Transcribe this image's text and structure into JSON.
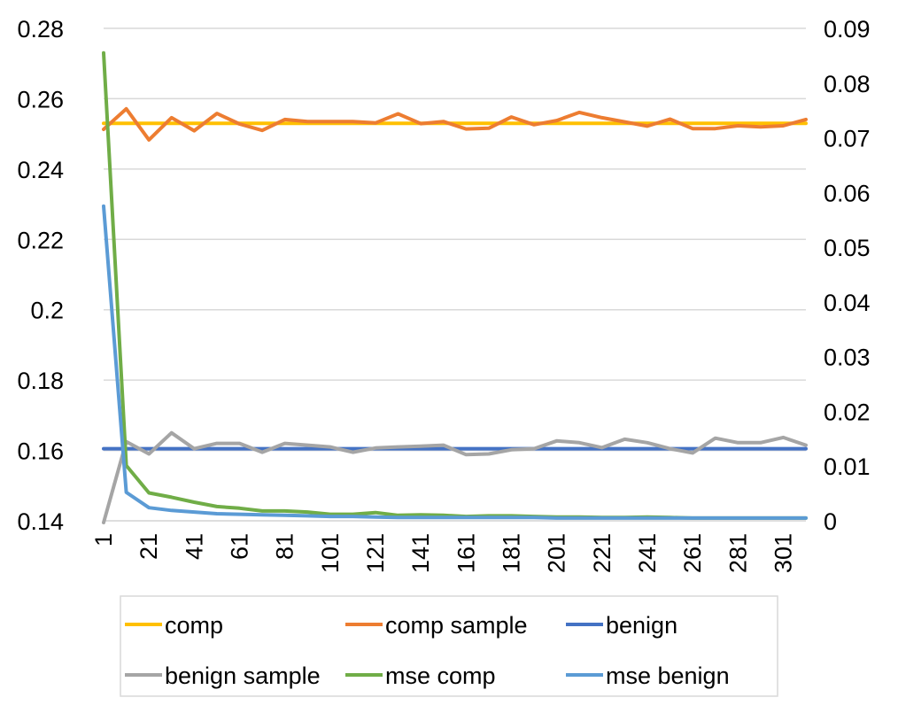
{
  "chart_data": {
    "type": "line",
    "title": "",
    "xlabel": "",
    "ylabel": "",
    "x_ticks": [
      "1",
      "21",
      "41",
      "61",
      "81",
      "101",
      "121",
      "141",
      "161",
      "181",
      "201",
      "221",
      "241",
      "261",
      "281",
      "301"
    ],
    "x_range": [
      1,
      311
    ],
    "y_left": {
      "range": [
        0.14,
        0.28
      ],
      "ticks": [
        "0.14",
        "0.16",
        "0.18",
        "0.2",
        "0.22",
        "0.24",
        "0.26",
        "0.28"
      ],
      "tick_values": [
        0.14,
        0.16,
        0.18,
        0.2,
        0.22,
        0.24,
        0.26,
        0.28
      ]
    },
    "y_right": {
      "range": [
        0,
        0.09
      ],
      "ticks": [
        "0",
        "0.01",
        "0.02",
        "0.03",
        "0.04",
        "0.05",
        "0.06",
        "0.07",
        "0.08",
        "0.09"
      ],
      "tick_values": [
        0,
        0.01,
        0.02,
        0.03,
        0.04,
        0.05,
        0.06,
        0.07,
        0.08,
        0.09
      ]
    },
    "grid": "horizontal",
    "legend_position": "bottom",
    "x": [
      1,
      11,
      21,
      31,
      41,
      51,
      61,
      71,
      81,
      91,
      101,
      111,
      121,
      131,
      141,
      151,
      161,
      171,
      181,
      191,
      201,
      211,
      221,
      231,
      241,
      251,
      261,
      271,
      281,
      291,
      301,
      311
    ],
    "series": [
      {
        "name": "comp",
        "axis": "left",
        "color": "#FFC000",
        "values": [
          0.253,
          0.253,
          0.253,
          0.253,
          0.253,
          0.253,
          0.253,
          0.253,
          0.253,
          0.253,
          0.253,
          0.253,
          0.253,
          0.253,
          0.253,
          0.253,
          0.253,
          0.253,
          0.253,
          0.253,
          0.253,
          0.253,
          0.253,
          0.253,
          0.253,
          0.253,
          0.253,
          0.253,
          0.253,
          0.253,
          0.253,
          0.253
        ]
      },
      {
        "name": "comp sample",
        "axis": "left",
        "color": "#ED7D31",
        "values": [
          0.2513,
          0.2571,
          0.2483,
          0.2546,
          0.2509,
          0.2558,
          0.2528,
          0.251,
          0.2541,
          0.2535,
          0.2535,
          0.2535,
          0.2531,
          0.2557,
          0.2529,
          0.2535,
          0.2514,
          0.2516,
          0.2548,
          0.2526,
          0.2538,
          0.2561,
          0.2546,
          0.2534,
          0.2522,
          0.2542,
          0.2515,
          0.2515,
          0.2523,
          0.252,
          0.2523,
          0.2541
        ]
      },
      {
        "name": "benign",
        "axis": "left",
        "color": "#4472C4",
        "values": [
          0.1605,
          0.1605,
          0.1605,
          0.1605,
          0.1605,
          0.1605,
          0.1605,
          0.1605,
          0.1605,
          0.1605,
          0.1605,
          0.1605,
          0.1605,
          0.1605,
          0.1605,
          0.1605,
          0.1605,
          0.1605,
          0.1605,
          0.1605,
          0.1605,
          0.1605,
          0.1605,
          0.1605,
          0.1605,
          0.1605,
          0.1605,
          0.1605,
          0.1605,
          0.1605,
          0.1605,
          0.1605
        ]
      },
      {
        "name": "benign sample",
        "axis": "left",
        "color": "#A5A5A5",
        "values": [
          0.1395,
          0.1625,
          0.159,
          0.165,
          0.1605,
          0.162,
          0.162,
          0.1595,
          0.162,
          0.1615,
          0.161,
          0.1595,
          0.1607,
          0.161,
          0.1612,
          0.1615,
          0.1588,
          0.159,
          0.1602,
          0.1605,
          0.1627,
          0.1622,
          0.1608,
          0.1632,
          0.1622,
          0.1605,
          0.1593,
          0.1635,
          0.1622,
          0.1622,
          0.1637,
          0.1615
        ]
      },
      {
        "name": "mse comp",
        "axis": "right",
        "color": "#70AD47",
        "values": [
          0.0855,
          0.0101,
          0.0051,
          0.0043,
          0.0034,
          0.0026,
          0.0023,
          0.0018,
          0.0018,
          0.0016,
          0.0012,
          0.0012,
          0.0015,
          0.001,
          0.0011,
          0.001,
          0.0008,
          0.0009,
          0.0009,
          0.0008,
          0.0007,
          0.0007,
          0.0006,
          0.0006,
          0.0007,
          0.0006,
          0.0005,
          0.0005,
          0.0005,
          0.0005,
          0.0005,
          0.0005
        ]
      },
      {
        "name": "mse benign",
        "axis": "right",
        "color": "#5B9BD5",
        "values": [
          0.0575,
          0.0052,
          0.0024,
          0.0019,
          0.0016,
          0.0013,
          0.0012,
          0.0011,
          0.001,
          0.0009,
          0.0008,
          0.0008,
          0.0007,
          0.0006,
          0.0006,
          0.0006,
          0.0006,
          0.0006,
          0.0006,
          0.0006,
          0.0005,
          0.0005,
          0.0005,
          0.0005,
          0.0005,
          0.0005,
          0.0005,
          0.0005,
          0.0005,
          0.0005,
          0.0005,
          0.0005
        ]
      }
    ]
  }
}
